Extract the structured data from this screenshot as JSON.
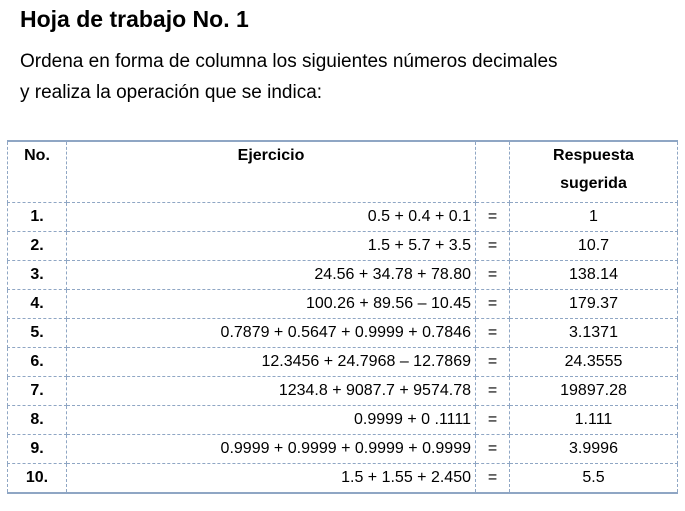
{
  "title": "Hoja de trabajo No. 1",
  "instructions": {
    "line1": "Ordena en forma de columna los siguientes números decimales",
    "line2": "y realiza la operación que se indica:"
  },
  "table": {
    "headers": {
      "no": "No.",
      "exercise": "Ejercicio",
      "answer_line1": "Respuesta",
      "answer_line2": "sugerida"
    },
    "rows": [
      {
        "no": "1.",
        "exercise": "0.5 + 0.4 + 0.1",
        "eq": "=",
        "answer": "1"
      },
      {
        "no": "2.",
        "exercise": "1.5 + 5.7 + 3.5",
        "eq": "=",
        "answer": "10.7"
      },
      {
        "no": "3.",
        "exercise": "24.56 + 34.78 + 78.80",
        "eq": "=",
        "answer": "138.14"
      },
      {
        "no": "4.",
        "exercise": "100.26 + 89.56 – 10.45",
        "eq": "=",
        "answer": "179.37"
      },
      {
        "no": "5.",
        "exercise": "0.7879 + 0.5647 + 0.9999 + 0.7846",
        "eq": "=",
        "answer": "3.1371"
      },
      {
        "no": "6.",
        "exercise": "12.3456 + 24.7968 – 12.7869",
        "eq": "=",
        "answer": "24.3555"
      },
      {
        "no": "7.",
        "exercise": "1234.8 + 9087.7 + 9574.78",
        "eq": "=",
        "answer": "19897.28"
      },
      {
        "no": "8.",
        "exercise": "0.9999 + 0 .1111",
        "eq": "=",
        "answer": "1.111"
      },
      {
        "no": "9.",
        "exercise": "0.9999 + 0.9999 + 0.9999 + 0.9999",
        "eq": "=",
        "answer": "3.9996"
      },
      {
        "no": "10.",
        "exercise": "1.5 + 1.55 + 2.450",
        "eq": "=",
        "answer": "5.5"
      }
    ]
  }
}
